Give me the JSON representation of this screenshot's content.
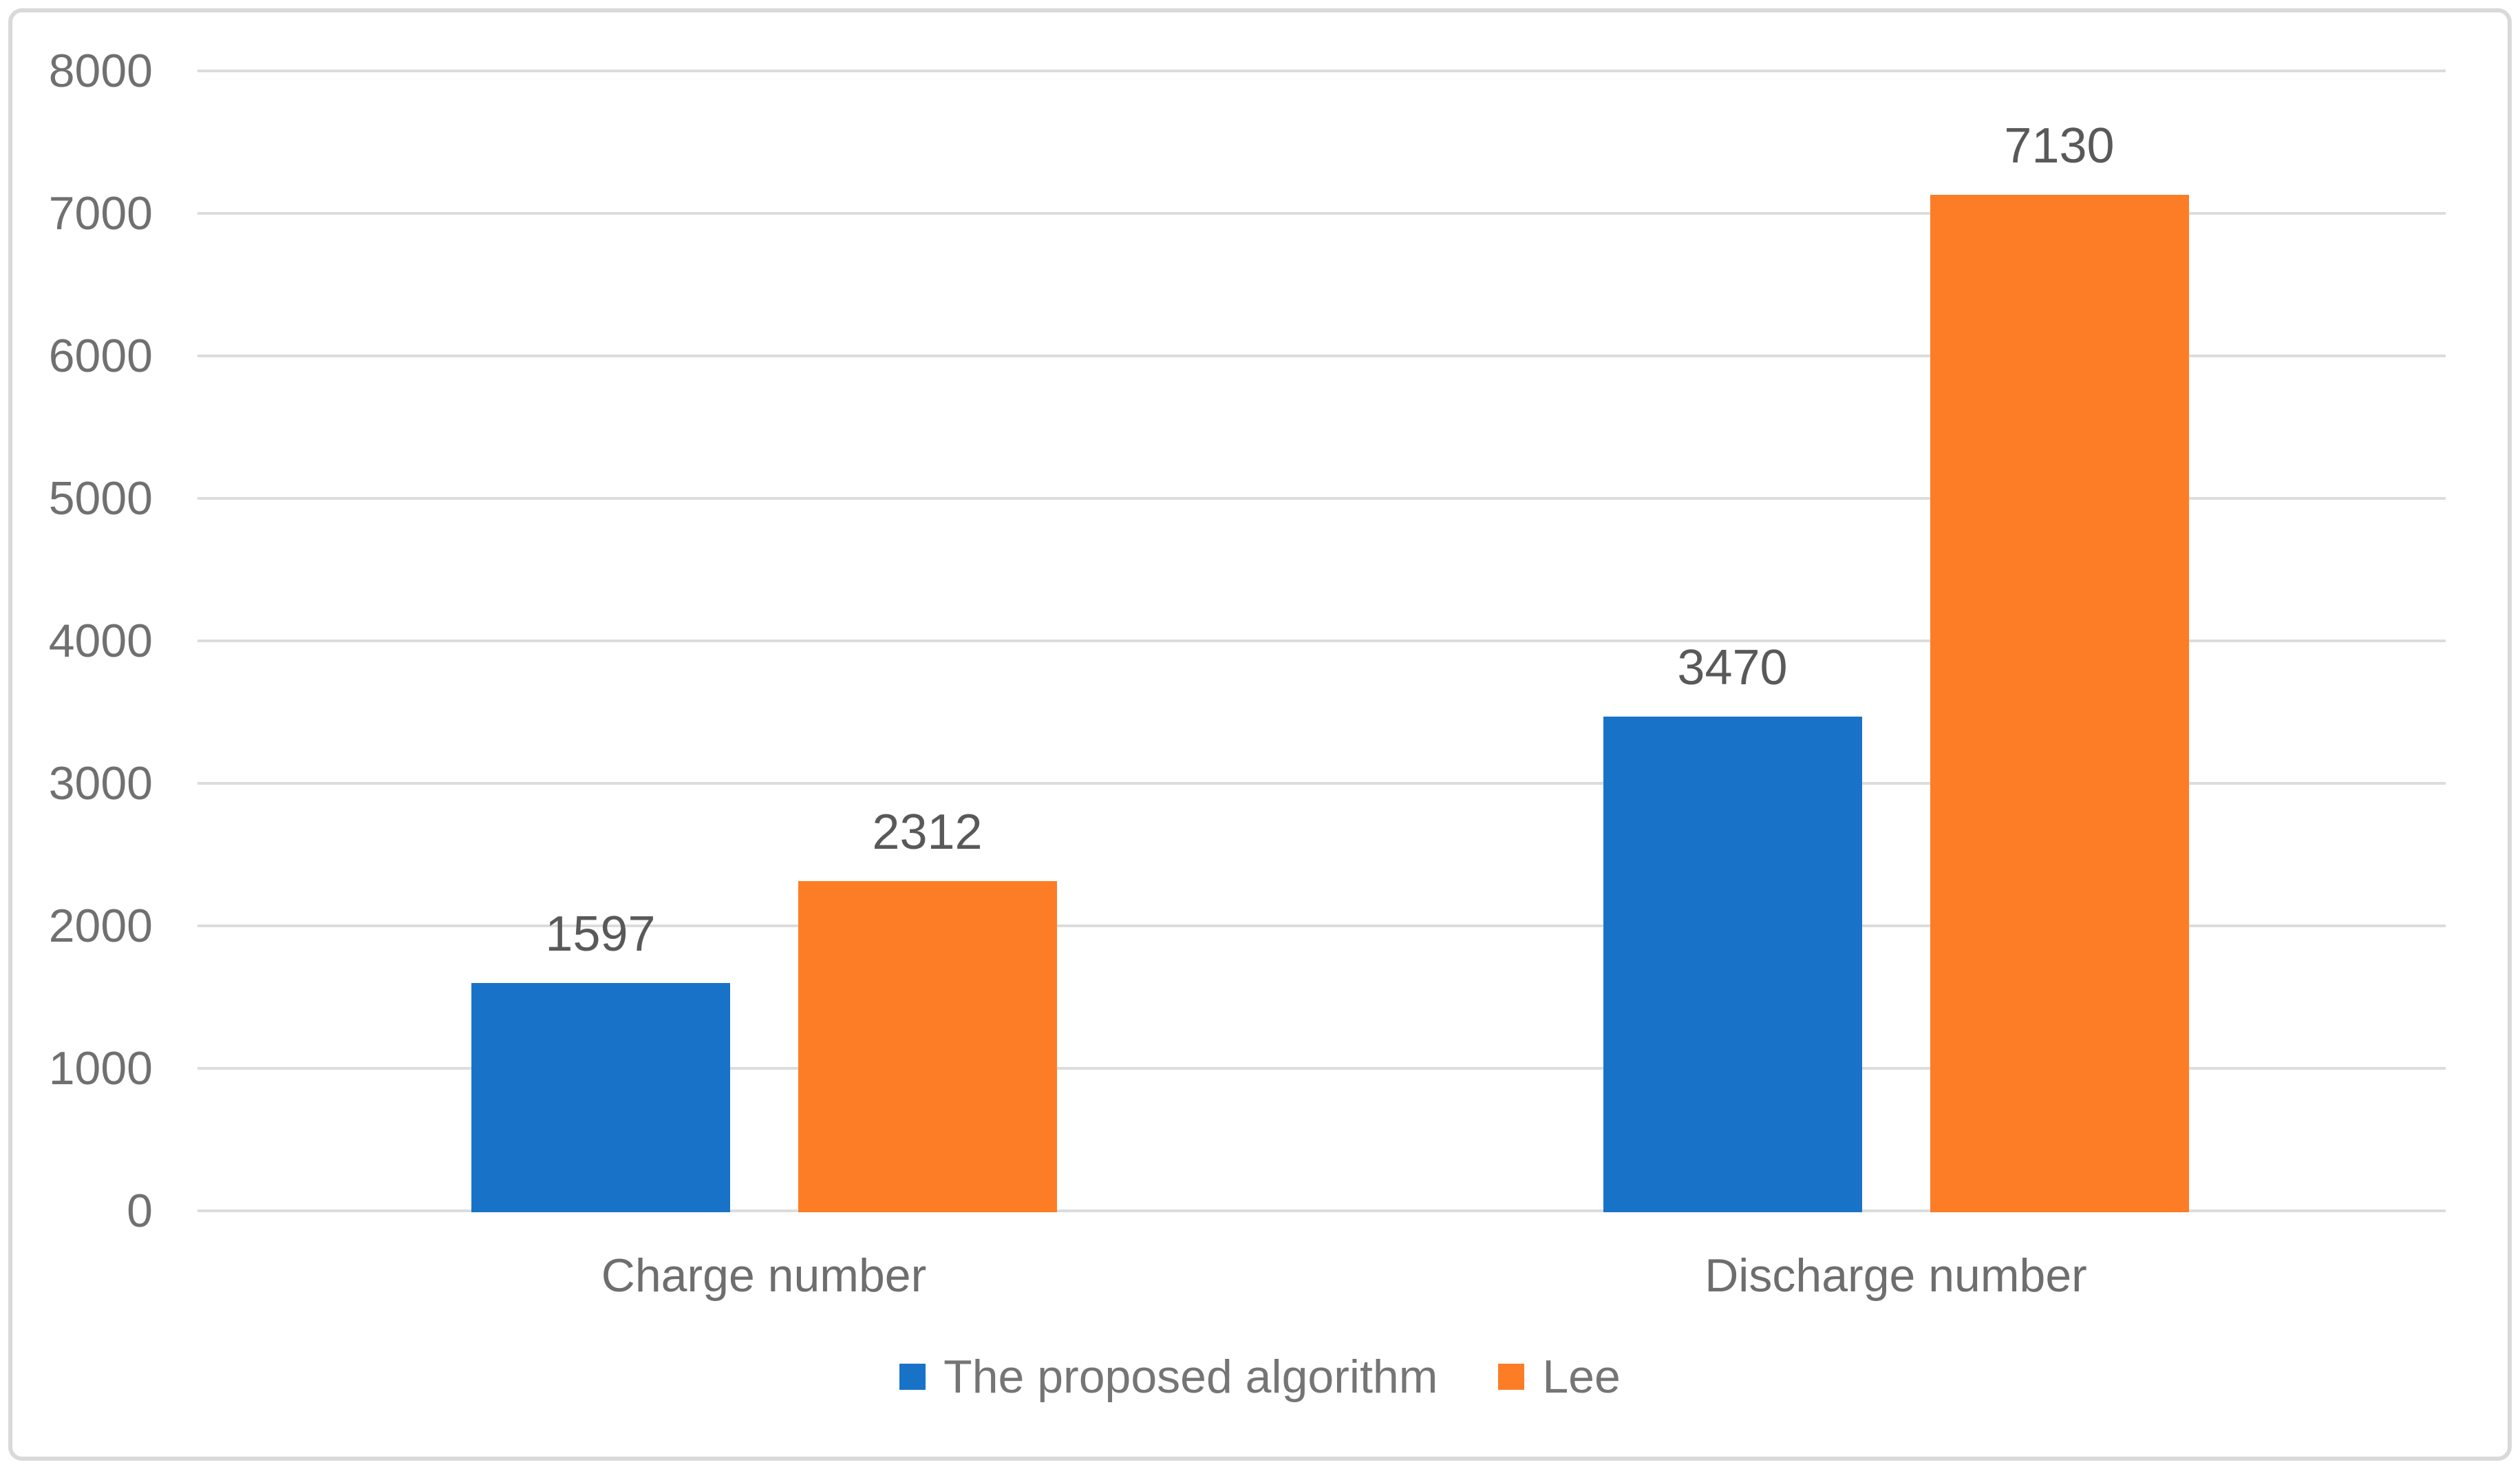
{
  "chart_data": {
    "type": "bar",
    "categories": [
      "Charge number",
      "Discharge number"
    ],
    "series": [
      {
        "name": "The proposed algorithm",
        "color": "#1873C8",
        "values": [
          1597,
          3470
        ]
      },
      {
        "name": "Lee",
        "color": "#FC7D25",
        "values": [
          2312,
          7130
        ]
      }
    ],
    "title": "",
    "xlabel": "",
    "ylabel": "",
    "ylim": [
      0,
      8000
    ],
    "yticks": [
      0,
      1000,
      2000,
      3000,
      4000,
      5000,
      6000,
      7000,
      8000
    ],
    "grid": true,
    "gridline_color": "#dcdcdc",
    "legend_position": "bottom",
    "data_labels": [
      [
        "1597",
        "3470"
      ],
      [
        "2312",
        "7130"
      ]
    ],
    "tick_labels": [
      "0",
      "1000",
      "2000",
      "3000",
      "4000",
      "5000",
      "6000",
      "7000",
      "8000"
    ]
  },
  "colors": {
    "background": "#ffffff",
    "frame_border": "#d9d9d9",
    "axis_text": "#707070",
    "category_text": "#6e6e6e",
    "data_label_text": "#595959",
    "legend_text": "#757575"
  }
}
